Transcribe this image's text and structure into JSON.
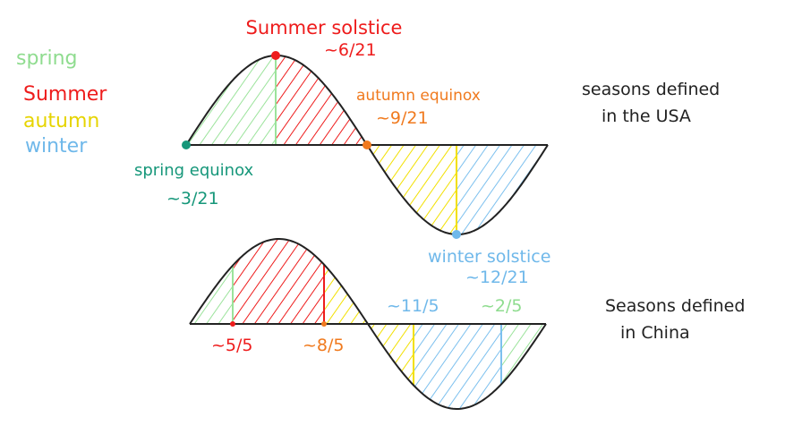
{
  "legend": [
    "spring",
    "Summer",
    "autumn",
    "winter"
  ],
  "usa": {
    "caption": [
      "seasons defined",
      "in the USA"
    ],
    "summer_solstice": {
      "label": "Summer solstice",
      "date": "~6/21"
    },
    "autumn_equinox": {
      "label": "autumn equinox",
      "date": "~9/21"
    },
    "spring_equinox": {
      "label": "spring equinox",
      "date": "~3/21"
    },
    "winter_solstice": {
      "label": "winter solstice",
      "date": "~12/21"
    }
  },
  "china": {
    "caption": [
      "Seasons defined",
      "in China"
    ],
    "dates": [
      "~5/5",
      "~8/5",
      "~11/5",
      "~2/5"
    ]
  }
}
